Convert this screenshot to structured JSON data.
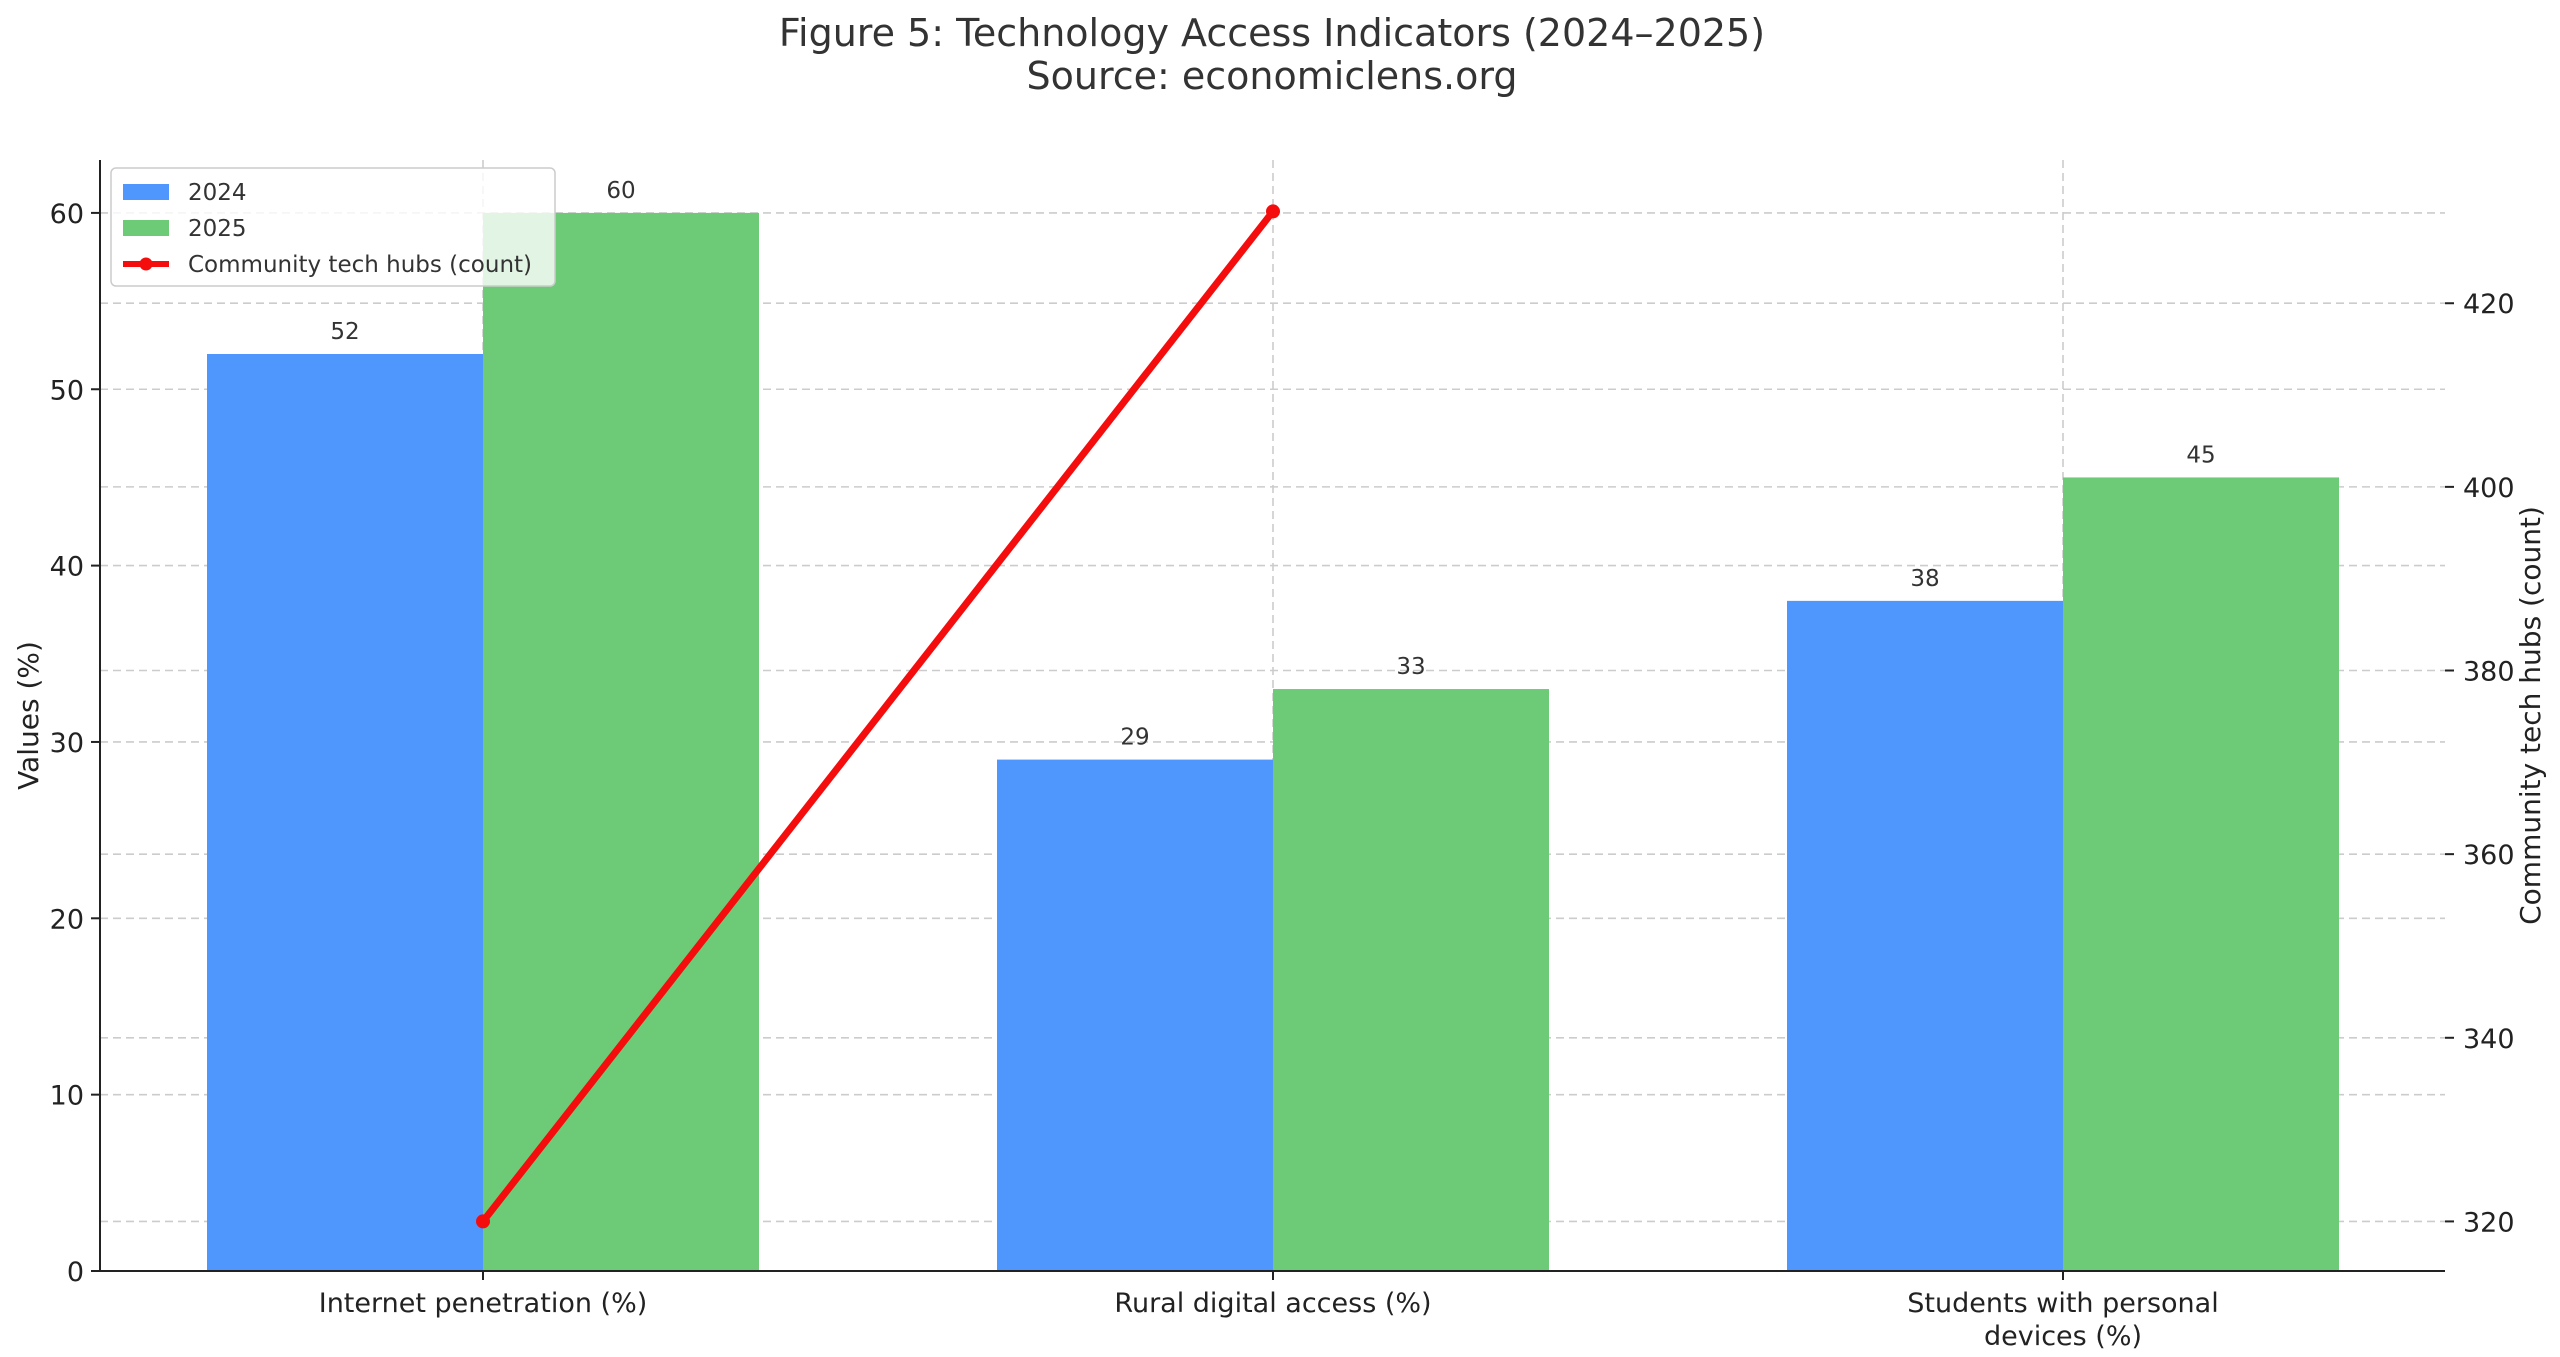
{
  "chart_data": {
    "type": "bar",
    "title": "Figure 5: Technology Access Indicators (2024–2025)",
    "subtitle": "Source: economiclens.org",
    "categories": [
      "Internet penetration (%)",
      "Rural digital access (%)",
      "Students with personal devices (%)"
    ],
    "category_lines": [
      [
        "Internet penetration (%)"
      ],
      [
        "Rural digital access (%)"
      ],
      [
        "Students with personal",
        "devices (%)"
      ]
    ],
    "series": [
      {
        "name": "2024",
        "values": [
          52,
          29,
          38
        ],
        "color": "#4f96fd"
      },
      {
        "name": "2025",
        "values": [
          60,
          33,
          45
        ],
        "color": "#6dcb77"
      }
    ],
    "line_series": {
      "name": "Community tech hubs (count)",
      "color": "#f50d0d",
      "axis": "right",
      "points": [
        {
          "category": "Internet penetration (%)",
          "value": 320
        },
        {
          "category": "Rural digital access (%)",
          "value": 430
        }
      ]
    },
    "ylabel": "Values (%)",
    "y2label": "Community tech hubs (count)",
    "ylim": [
      0,
      63
    ],
    "y2lim": [
      314.6,
      435.6
    ],
    "yticks": [
      0,
      10,
      20,
      30,
      40,
      50,
      60
    ],
    "y2ticks": [
      320,
      340,
      360,
      380,
      400,
      420
    ],
    "grid": true,
    "legend_position": "top-left"
  }
}
